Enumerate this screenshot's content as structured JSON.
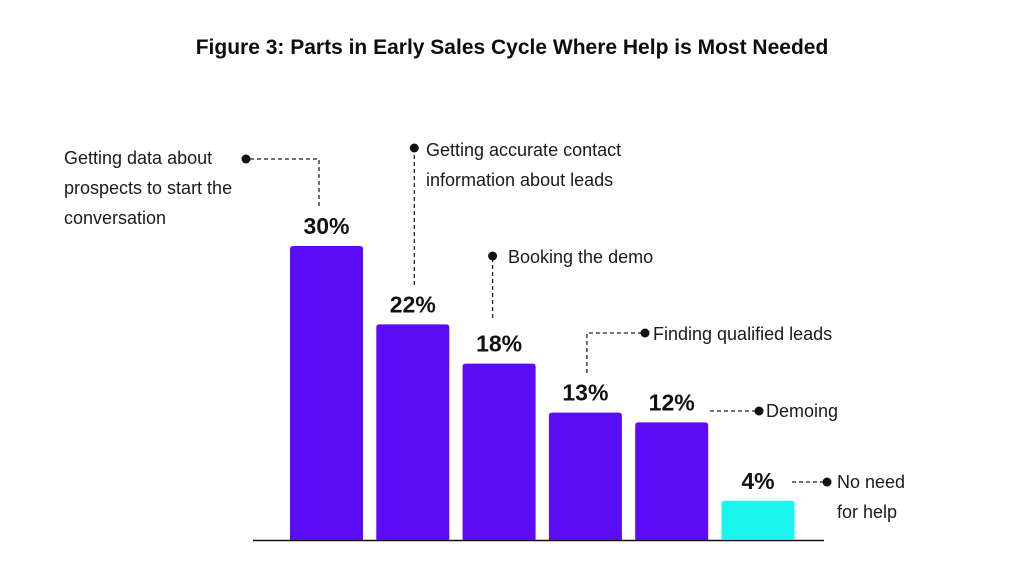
{
  "chart_data": {
    "type": "bar",
    "title": "Figure 3: Parts in Early Sales Cycle Where Help is Most Needed",
    "xlabel": "",
    "ylabel": "",
    "ylim": [
      0,
      30
    ],
    "grid": false,
    "legend": "none",
    "categories": [
      "Getting data about\nprospects to start the\nconversation",
      "Getting accurate contact\ninformation about leads",
      "Booking the demo",
      "Finding qualified leads",
      "Demoing",
      "No need\nfor help"
    ],
    "values": [
      30,
      22,
      18,
      13,
      12,
      4
    ],
    "value_labels": [
      "30%",
      "22%",
      "18%",
      "13%",
      "12%",
      "4%"
    ],
    "colors": [
      "#5a0cf7",
      "#5a0cf7",
      "#5a0cf7",
      "#5a0cf7",
      "#5a0cf7",
      "#19f4ee"
    ]
  }
}
